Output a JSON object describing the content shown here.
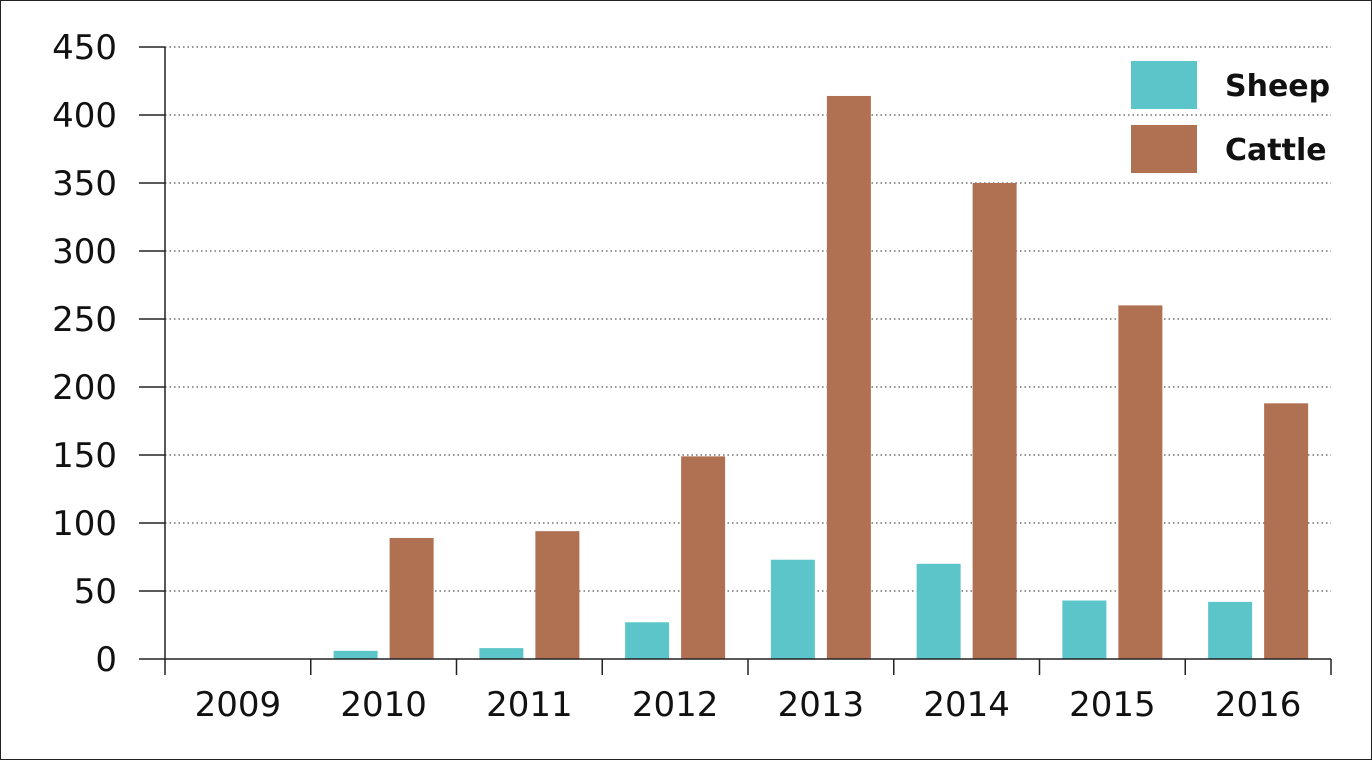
{
  "chart_data": {
    "type": "bar",
    "title": "",
    "xlabel": "",
    "ylabel": "",
    "categories": [
      "2009",
      "2010",
      "2011",
      "2012",
      "2013",
      "2014",
      "2015",
      "2016"
    ],
    "series": [
      {
        "name": "Sheep",
        "color": "#5bc5c9",
        "values": [
          0,
          6,
          8,
          27,
          73,
          70,
          43,
          42
        ]
      },
      {
        "name": "Cattle",
        "color": "#b07052",
        "values": [
          0,
          89,
          94,
          149,
          414,
          350,
          260,
          188
        ]
      }
    ],
    "ylim": [
      0,
      450
    ],
    "yticks": [
      "0",
      "50",
      "100",
      "150",
      "200",
      "250",
      "300",
      "350",
      "400",
      "450"
    ],
    "grid": "horizontal dotted",
    "legend_position": "top-right"
  }
}
